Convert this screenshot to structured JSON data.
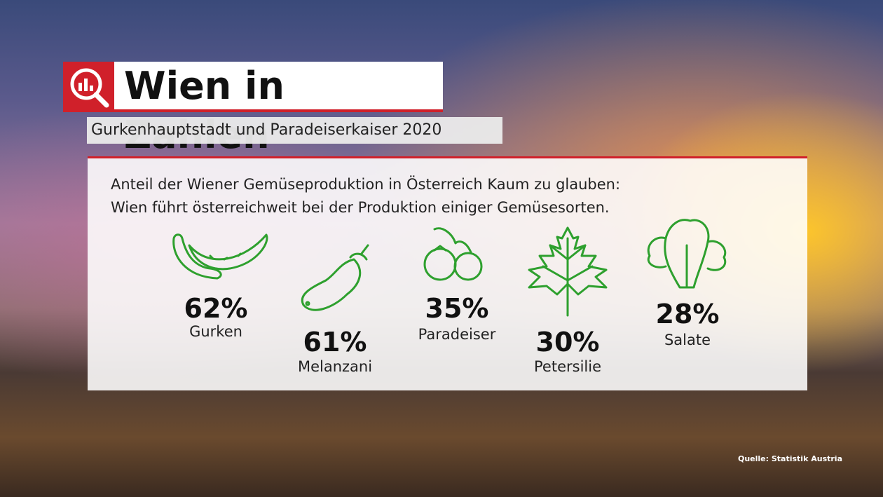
{
  "header": {
    "title": "Wien in Zahlen",
    "subtitle": "Gurkenhauptstadt und Paradeiserkaiser 2020"
  },
  "panel": {
    "intro": [
      "Anteil der Wiener Gemüseproduktion in Österreich Kaum zu glauben:",
      "Wien führt österreichweit bei der Produktion einiger Gemüsesorten."
    ],
    "items": [
      {
        "percent": "62%",
        "label": "Gurken"
      },
      {
        "percent": "61%",
        "label": "Melanzani"
      },
      {
        "percent": "35%",
        "label": "Paradeiser"
      },
      {
        "percent": "30%",
        "label": "Petersilie"
      },
      {
        "percent": "28%",
        "label": "Salate"
      }
    ]
  },
  "source": "Quelle: Statistik Austria"
}
